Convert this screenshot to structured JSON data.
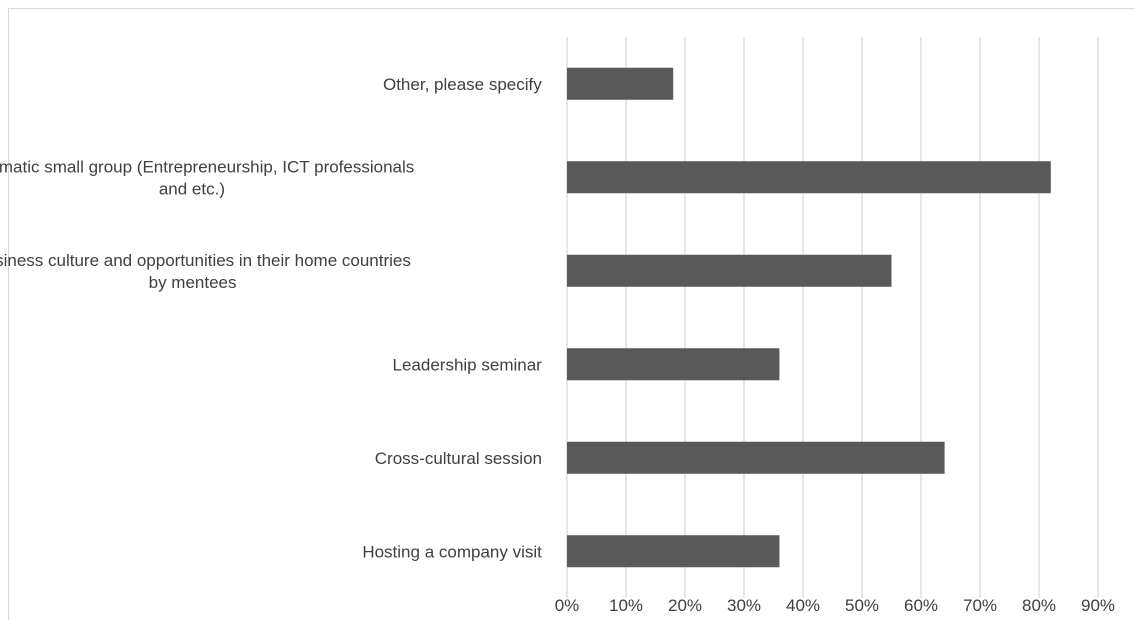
{
  "chart_data": {
    "type": "bar",
    "orientation": "horizontal",
    "title": "",
    "xlabel": "",
    "ylabel": "",
    "categories": [
      "Other, please specify",
      "Thematic small group (Entrepreneurship, ICT professionals and etc.)",
      "Business culture and opportunities in their home countries by mentees",
      "Leadership seminar",
      "Cross-cultural session",
      "Hosting a company visit"
    ],
    "category_lines": [
      [
        "Other, please specify"
      ],
      [
        "Thematic small group (Entrepreneurship, ICT professionals",
        "and etc.)"
      ],
      [
        "Business culture and opportunities in their home countries",
        "by mentees"
      ],
      [
        "Leadership seminar"
      ],
      [
        "Cross-cultural session"
      ],
      [
        "Hosting a company visit"
      ]
    ],
    "values": [
      0.18,
      0.82,
      0.55,
      0.36,
      0.64,
      0.36
    ],
    "xlim": [
      0,
      0.9
    ],
    "xticks": [
      0,
      0.1,
      0.2,
      0.3,
      0.4,
      0.5,
      0.6,
      0.7,
      0.8,
      0.9
    ],
    "xtick_labels": [
      "0%",
      "10%",
      "20%",
      "30%",
      "40%",
      "50%",
      "60%",
      "70%",
      "80%",
      "90%"
    ],
    "grid": "vertical",
    "legend": "none",
    "bar_color": "#595959",
    "grid_color": "#d9d9d9"
  }
}
